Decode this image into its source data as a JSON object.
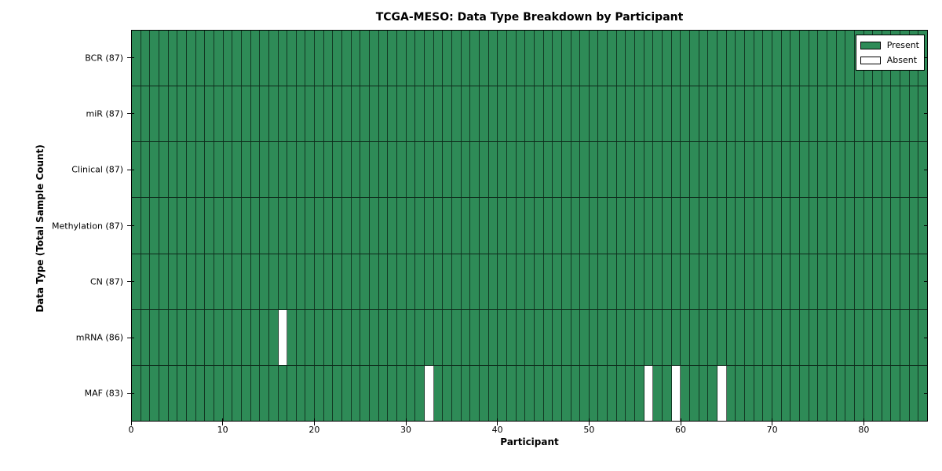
{
  "chart_data": {
    "type": "heatmap",
    "title": "TCGA-MESO: Data Type Breakdown by Participant",
    "xlabel": "Participant",
    "ylabel": "Data Type (Total Sample Count)",
    "x_ticks": [
      0,
      10,
      20,
      30,
      40,
      50,
      60,
      70,
      80
    ],
    "x_range": [
      0,
      87
    ],
    "n_participants": 87,
    "grid": "cell-edges",
    "legend_position": "upper right",
    "rows": [
      {
        "label": "BCR (87)",
        "present_count": 87,
        "absent_indices": []
      },
      {
        "label": "miR (87)",
        "present_count": 87,
        "absent_indices": []
      },
      {
        "label": "Clinical (87)",
        "present_count": 87,
        "absent_indices": []
      },
      {
        "label": "Methylation (87)",
        "present_count": 87,
        "absent_indices": []
      },
      {
        "label": "CN (87)",
        "present_count": 87,
        "absent_indices": []
      },
      {
        "label": "mRNA (86)",
        "present_count": 86,
        "absent_indices": [
          16
        ]
      },
      {
        "label": "MAF (83)",
        "present_count": 83,
        "absent_indices": [
          32,
          56,
          59,
          64
        ]
      }
    ],
    "legend": [
      {
        "label": "Present",
        "color": "#2e8b57"
      },
      {
        "label": "Absent",
        "color": "#ffffff"
      }
    ],
    "colors": {
      "present": "#2e8b57",
      "absent": "#ffffff",
      "edge": "#000000",
      "text": "#000000",
      "background": "#ffffff"
    }
  }
}
